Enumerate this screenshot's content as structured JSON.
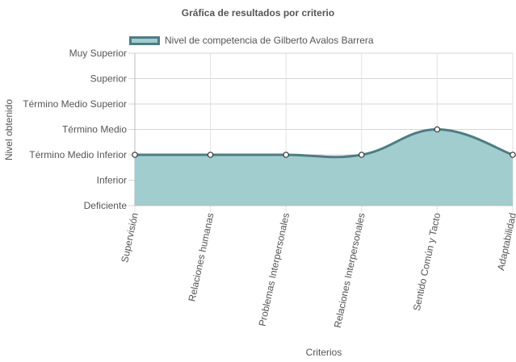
{
  "chart_data": {
    "type": "area",
    "title": "Gráfica de resultados por criterio",
    "xlabel": "Criterios",
    "ylabel": "Nivel obtenido",
    "y_levels": [
      "Deficiente",
      "Inferior",
      "Término Medio Inferior",
      "Término Medio",
      "Término Medio Superior",
      "Superior",
      "Muy Superior"
    ],
    "ylim": [
      0,
      6
    ],
    "categories": [
      "Supervisión",
      "Relaciones humanas",
      "Problemas Interpersonales",
      "Relaciones Interpersonales",
      "Sentido Común y Tacto",
      "Adaptabilidad"
    ],
    "series": [
      {
        "name": "Nivel de competencia de Gilberto Avalos Barrera",
        "values": [
          2,
          2,
          2,
          2,
          3,
          2
        ],
        "fill": "#a1cdcf",
        "line": "#4e7c84"
      }
    ],
    "grid": true,
    "legend_position": "top-left"
  }
}
